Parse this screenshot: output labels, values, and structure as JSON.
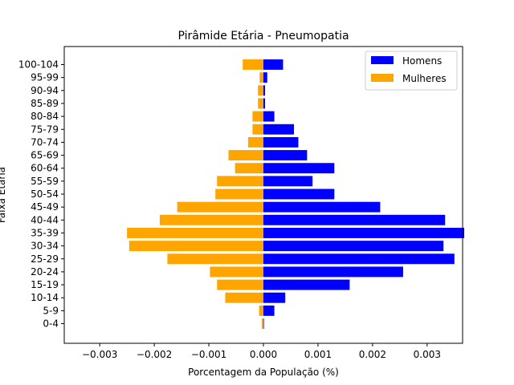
{
  "chart_data": {
    "type": "bar",
    "orientation": "horizontal",
    "title": "Pirâmide Etária - Pneumopatia",
    "xlabel": "Porcentagem da População (%)",
    "ylabel": "Faixa Etária",
    "xlim": [
      -0.00365,
      0.00365
    ],
    "x_ticks": [
      -0.003,
      -0.002,
      -0.001,
      0.0,
      0.001,
      0.002,
      0.003
    ],
    "x_tick_labels": [
      "−0.003",
      "−0.002",
      "−0.001",
      "0.000",
      "0.001",
      "0.002",
      "0.003"
    ],
    "grid": false,
    "legend_position": "top-right",
    "categories": [
      "0-4",
      "5-9",
      "10-14",
      "15-19",
      "20-24",
      "25-29",
      "30-34",
      "35-39",
      "40-44",
      "45-49",
      "50-54",
      "55-59",
      "60-64",
      "65-69",
      "70-74",
      "75-79",
      "80-84",
      "85-89",
      "90-94",
      "95-99",
      "100-104"
    ],
    "series": [
      {
        "name": "Homens",
        "color": "#0000ff",
        "values": [
          0.0,
          0.0002,
          0.0004,
          0.00158,
          0.00256,
          0.0035,
          0.0033,
          0.00368,
          0.00333,
          0.00214,
          0.0013,
          0.0009,
          0.0013,
          0.0008,
          0.00064,
          0.00056,
          0.0002,
          3e-05,
          3e-05,
          7e-05,
          0.00036
        ]
      },
      {
        "name": "Mulheres",
        "color": "#ffa500",
        "values": [
          -3e-05,
          -8e-05,
          -0.0007,
          -0.00085,
          -0.00098,
          -0.00176,
          -0.00246,
          -0.0025,
          -0.0019,
          -0.00158,
          -0.00088,
          -0.00085,
          -0.00052,
          -0.00064,
          -0.00028,
          -0.0002,
          -0.0002,
          -0.0001,
          -0.0001,
          -7e-05,
          -0.00038
        ]
      }
    ]
  }
}
